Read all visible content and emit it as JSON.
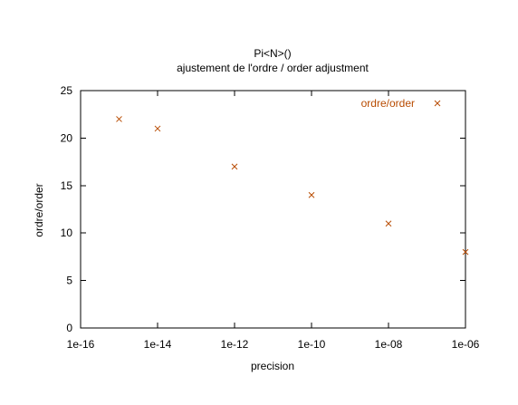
{
  "chart_data": {
    "type": "scatter",
    "title": "Pi<N>()",
    "subtitle": "ajustement de l'ordre / order adjustment",
    "xlabel": "precision",
    "ylabel": "ordre/order",
    "x_scale": "log",
    "xlim": [
      1e-16,
      1e-06
    ],
    "ylim": [
      0,
      25
    ],
    "x_ticks": [
      {
        "value": 1e-16,
        "label": "1e-16"
      },
      {
        "value": 1e-14,
        "label": "1e-14"
      },
      {
        "value": 1e-12,
        "label": "1e-12"
      },
      {
        "value": 1e-10,
        "label": "1e-10"
      },
      {
        "value": 1e-08,
        "label": "1e-08"
      },
      {
        "value": 1e-06,
        "label": "1e-06"
      }
    ],
    "y_ticks": [
      {
        "value": 0,
        "label": "0"
      },
      {
        "value": 5,
        "label": "5"
      },
      {
        "value": 10,
        "label": "10"
      },
      {
        "value": 15,
        "label": "15"
      },
      {
        "value": 20,
        "label": "20"
      },
      {
        "value": 25,
        "label": "25"
      }
    ],
    "grid": false,
    "legend_position": "top-right",
    "series": [
      {
        "name": "ordre/order",
        "marker": "cross",
        "color": "#b84b00",
        "points": [
          {
            "x": 1e-15,
            "y": 22
          },
          {
            "x": 1e-14,
            "y": 21
          },
          {
            "x": 1e-12,
            "y": 17
          },
          {
            "x": 1e-10,
            "y": 14
          },
          {
            "x": 1e-08,
            "y": 11
          },
          {
            "x": 1e-06,
            "y": 8
          }
        ]
      }
    ]
  }
}
